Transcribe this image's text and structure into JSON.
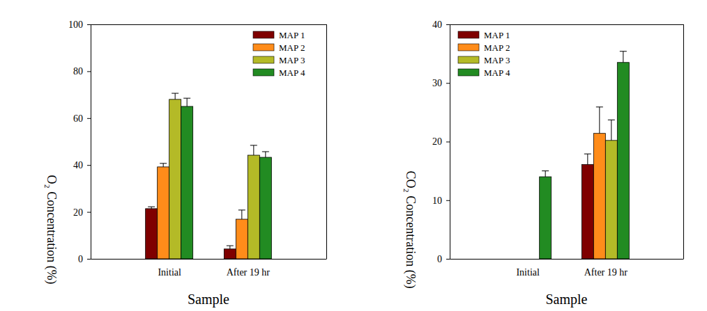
{
  "chart_data": [
    {
      "type": "bar",
      "xlabel": "Sample",
      "ylabel": "O₂ Concentration (%)",
      "categories": [
        "Initial",
        "After 19 hr"
      ],
      "ylim": [
        0,
        100
      ],
      "yticks": [
        0,
        20,
        40,
        60,
        80,
        100
      ],
      "legend": "upper right",
      "series": [
        {
          "name": "MAP 1",
          "color": "#7f0000",
          "values": [
            21.4,
            4.2
          ],
          "errors": [
            0.8,
            1.4
          ]
        },
        {
          "name": "MAP 2",
          "color": "#ff8c1a",
          "values": [
            39.2,
            16.9
          ],
          "errors": [
            1.5,
            3.9
          ]
        },
        {
          "name": "MAP 3",
          "color": "#b4ba27",
          "values": [
            68.0,
            44.2
          ],
          "errors": [
            2.6,
            4.2
          ]
        },
        {
          "name": "MAP 4",
          "color": "#228b22",
          "values": [
            65.0,
            43.3
          ],
          "errors": [
            3.5,
            2.4
          ]
        }
      ]
    },
    {
      "type": "bar",
      "xlabel": "Sample",
      "ylabel": "CO₂ Concentration (%)",
      "categories": [
        "Initial",
        "After 19 hr"
      ],
      "ylim": [
        0,
        40
      ],
      "yticks": [
        0,
        10,
        20,
        30,
        40
      ],
      "legend": "upper left",
      "series": [
        {
          "name": "MAP 1",
          "color": "#7f0000",
          "values": [
            null,
            16.1
          ],
          "errors": [
            null,
            1.8
          ]
        },
        {
          "name": "MAP 2",
          "color": "#ff8c1a",
          "values": [
            null,
            21.4
          ],
          "errors": [
            null,
            4.5
          ]
        },
        {
          "name": "MAP 3",
          "color": "#b4ba27",
          "values": [
            null,
            20.2
          ],
          "errors": [
            null,
            3.5
          ]
        },
        {
          "name": "MAP 4",
          "color": "#228b22",
          "values": [
            14.0,
            33.5
          ],
          "errors": [
            1.0,
            1.9
          ]
        }
      ]
    }
  ]
}
